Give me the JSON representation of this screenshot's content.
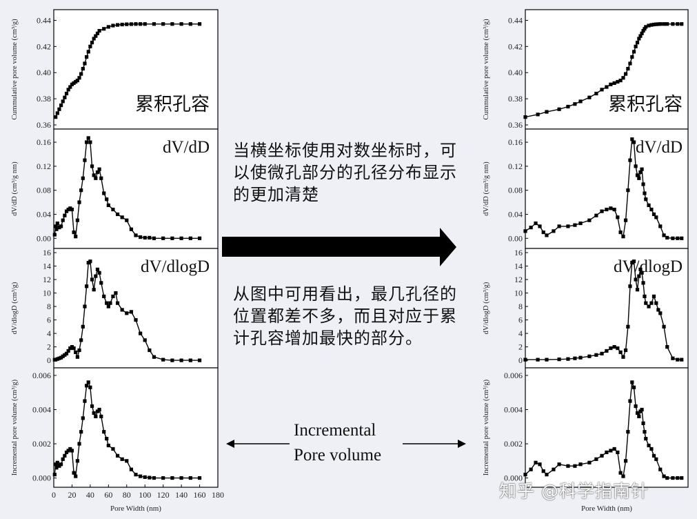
{
  "annotations": {
    "top": "当横坐标使用对数坐标时，可以使微孔部分的孔径分布显示的更加清楚",
    "middle": "从图中可用看出，最几孔径的位置都差不多，而且对应于累计孔容增加最快的部分。",
    "incremental_line1": "Incremental",
    "incremental_line2": "Pore volume",
    "watermark": "知乎 @科学指南针"
  },
  "chart_data": [
    {
      "id": "left",
      "type": "line",
      "x_scale": "linear",
      "xlabel": "Pore Width (nm)",
      "xlim": [
        0,
        180
      ],
      "xticks": [
        "0",
        "20",
        "40",
        "60",
        "80",
        "100",
        "120",
        "140",
        "160",
        "180"
      ],
      "panels": [
        {
          "label": "累积孔容",
          "ylabel": "Cummulative pore volume (cm³/g)",
          "ylim": [
            0.36,
            0.445
          ],
          "yticks": [
            "0.36",
            "0.38",
            "0.40",
            "0.42",
            "0.44"
          ],
          "x": [
            2,
            4,
            6,
            8,
            10,
            12,
            14,
            16,
            18,
            20,
            22,
            24,
            26,
            28,
            30,
            32,
            34,
            36,
            38,
            40,
            42,
            44,
            46,
            48,
            50,
            55,
            60,
            65,
            70,
            75,
            80,
            85,
            90,
            95,
            100,
            110,
            120,
            130,
            140,
            150,
            160
          ],
          "y": [
            0.366,
            0.369,
            0.372,
            0.375,
            0.378,
            0.381,
            0.384,
            0.387,
            0.389,
            0.391,
            0.392,
            0.393,
            0.394,
            0.396,
            0.399,
            0.403,
            0.407,
            0.412,
            0.416,
            0.42,
            0.423,
            0.426,
            0.428,
            0.43,
            0.432,
            0.4335,
            0.435,
            0.436,
            0.4365,
            0.4368,
            0.437,
            0.4371,
            0.4372,
            0.4372,
            0.4372,
            0.4372,
            0.4372,
            0.4372,
            0.4372,
            0.4372,
            0.4372
          ]
        },
        {
          "label": "dV/dD",
          "ylabel": "dV/dD (cm³/g nm)",
          "ylim": [
            -0.01,
            0.175
          ],
          "yticks": [
            "0.00",
            "0.04",
            "0.08",
            "0.12",
            "0.16"
          ],
          "x": [
            1,
            2,
            3,
            4,
            6,
            8,
            10,
            12,
            14,
            16,
            18,
            20,
            22,
            24,
            26,
            28,
            30,
            32,
            34,
            36,
            38,
            40,
            42,
            44,
            46,
            48,
            50,
            52,
            55,
            58,
            60,
            65,
            70,
            75,
            80,
            85,
            90,
            95,
            100,
            105,
            110,
            120,
            130,
            140,
            150,
            160
          ],
          "y": [
            0.006,
            0.02,
            0.015,
            0.025,
            0.018,
            0.02,
            0.03,
            0.038,
            0.045,
            0.048,
            0.05,
            0.048,
            0.01,
            0.003,
            0.03,
            0.06,
            0.08,
            0.1,
            0.13,
            0.16,
            0.167,
            0.16,
            0.12,
            0.105,
            0.1,
            0.11,
            0.115,
            0.1,
            0.075,
            0.065,
            0.055,
            0.048,
            0.04,
            0.035,
            0.03,
            0.015,
            0.005,
            0.002,
            0.001,
            0.001,
            0.0,
            0.0,
            0.0,
            0.0,
            0.0,
            0.0
          ]
        },
        {
          "label": "dV/dlogD",
          "ylabel": "dV/dlogD (cm³/g)",
          "ylim": [
            -0.5,
            16
          ],
          "yticks": [
            "0",
            "2",
            "4",
            "6",
            "8",
            "10",
            "12",
            "14",
            "16"
          ],
          "x": [
            1,
            2,
            4,
            6,
            8,
            10,
            12,
            14,
            16,
            18,
            20,
            22,
            24,
            26,
            28,
            30,
            32,
            34,
            36,
            38,
            40,
            42,
            44,
            46,
            48,
            50,
            52,
            55,
            58,
            60,
            62,
            65,
            68,
            70,
            75,
            80,
            85,
            90,
            95,
            100,
            105,
            110,
            120,
            130,
            140,
            150,
            160
          ],
          "y": [
            0.1,
            0.1,
            0.2,
            0.3,
            0.4,
            0.6,
            0.8,
            1.0,
            1.4,
            1.8,
            2.0,
            1.8,
            1.2,
            0.5,
            1.5,
            3.0,
            5.0,
            8.0,
            11.0,
            14.5,
            14.7,
            12.0,
            10.5,
            12.5,
            13.5,
            13.0,
            11.5,
            9.5,
            8.5,
            8.0,
            8.5,
            9.5,
            10.0,
            8.5,
            7.5,
            7.0,
            7.2,
            6.0,
            4.0,
            3.0,
            1.5,
            0.5,
            0.1,
            0.0,
            0.0,
            0.0,
            0.0
          ]
        },
        {
          "label": "",
          "ylabel": "Incremental pore volume (cm³/g)",
          "ylim": [
            -0.0003,
            0.0062
          ],
          "yticks": [
            "0.000",
            "0.002",
            "0.004",
            "0.006"
          ],
          "x": [
            1,
            2,
            3,
            4,
            6,
            8,
            10,
            12,
            14,
            16,
            18,
            20,
            22,
            24,
            26,
            28,
            30,
            32,
            34,
            36,
            38,
            40,
            42,
            44,
            46,
            48,
            50,
            52,
            55,
            58,
            60,
            65,
            70,
            75,
            80,
            85,
            90,
            95,
            100,
            105,
            110,
            120,
            130,
            140,
            150,
            160
          ],
          "y": [
            0.0002,
            0.0008,
            0.0006,
            0.0009,
            0.0007,
            0.0008,
            0.0011,
            0.0013,
            0.0015,
            0.0016,
            0.0017,
            0.0016,
            0.0003,
            0.0001,
            0.001,
            0.002,
            0.0027,
            0.0035,
            0.0045,
            0.0054,
            0.0056,
            0.0053,
            0.0042,
            0.0038,
            0.0036,
            0.0039,
            0.004,
            0.0036,
            0.0027,
            0.0023,
            0.0019,
            0.0017,
            0.0013,
            0.0011,
            0.001,
            0.0005,
            0.0002,
            0.0001,
            5e-05,
            2e-05,
            0.0,
            0.0,
            0.0,
            0.0,
            0.0,
            0.0
          ]
        }
      ]
    },
    {
      "id": "right",
      "type": "line",
      "x_scale": "log",
      "xlabel": "Pore Width (nm)",
      "panels": [
        {
          "label": "累积孔容",
          "ylabel": "Cummulative pore volume (cm³/g)",
          "ylim": [
            0.36,
            0.445
          ],
          "yticks": [
            "0.36",
            "0.38",
            "0.40",
            "0.42",
            "0.44"
          ],
          "x": [
            1,
            1.5,
            2,
            3,
            4,
            5,
            6,
            8,
            10,
            12,
            14,
            16,
            18,
            20,
            22,
            24,
            26,
            28,
            30,
            32,
            34,
            36,
            38,
            40,
            42,
            44,
            46,
            48,
            50,
            55,
            60,
            65,
            70,
            75,
            80,
            90,
            100,
            120,
            140,
            160
          ],
          "y": [
            0.366,
            0.368,
            0.37,
            0.372,
            0.374,
            0.376,
            0.378,
            0.381,
            0.384,
            0.387,
            0.389,
            0.391,
            0.392,
            0.393,
            0.394,
            0.396,
            0.399,
            0.403,
            0.407,
            0.412,
            0.416,
            0.42,
            0.423,
            0.426,
            0.428,
            0.43,
            0.432,
            0.4335,
            0.435,
            0.436,
            0.4365,
            0.4368,
            0.437,
            0.4371,
            0.4372,
            0.4372,
            0.4372,
            0.4372,
            0.4372,
            0.4372
          ]
        },
        {
          "label": "dV/dD",
          "ylabel": "dV/dD (cm³/g nm)",
          "ylim": [
            -0.01,
            0.175
          ],
          "yticks": [
            "0.00",
            "0.04",
            "0.08",
            "0.12",
            "0.16"
          ],
          "x": [
            1,
            1.2,
            1.4,
            1.6,
            1.8,
            2,
            2.5,
            3,
            4,
            5,
            6,
            8,
            10,
            12,
            14,
            16,
            18,
            20,
            22,
            24,
            26,
            28,
            30,
            32,
            34,
            36,
            38,
            40,
            42,
            44,
            46,
            48,
            50,
            55,
            60,
            65,
            70,
            80,
            90,
            100,
            120,
            140,
            160
          ],
          "y": [
            0.012,
            0.018,
            0.025,
            0.02,
            0.01,
            0.005,
            0.012,
            0.02,
            0.02,
            0.022,
            0.025,
            0.03,
            0.038,
            0.045,
            0.048,
            0.05,
            0.048,
            0.035,
            0.01,
            0.003,
            0.03,
            0.08,
            0.13,
            0.165,
            0.16,
            0.12,
            0.105,
            0.1,
            0.11,
            0.115,
            0.09,
            0.075,
            0.065,
            0.055,
            0.048,
            0.04,
            0.035,
            0.02,
            0.005,
            0.001,
            0.0,
            0.0,
            0.0
          ]
        },
        {
          "label": "dV/dlogD",
          "ylabel": "dV/dlogD (cm³/g)",
          "ylim": [
            -0.5,
            16
          ],
          "yticks": [
            "0",
            "2",
            "4",
            "6",
            "8",
            "10",
            "12",
            "14",
            "16"
          ],
          "x": [
            1,
            1.5,
            2,
            3,
            4,
            5,
            6,
            8,
            10,
            12,
            14,
            16,
            18,
            20,
            22,
            24,
            26,
            28,
            30,
            32,
            34,
            36,
            38,
            40,
            42,
            44,
            46,
            48,
            50,
            55,
            60,
            65,
            70,
            75,
            80,
            90,
            100,
            120,
            140,
            160
          ],
          "y": [
            0.1,
            0.1,
            0.1,
            0.15,
            0.2,
            0.3,
            0.4,
            0.6,
            0.8,
            1.0,
            1.4,
            1.8,
            2.0,
            1.8,
            1.2,
            0.5,
            1.5,
            5.0,
            11.0,
            14.5,
            14.7,
            12.0,
            10.5,
            12.5,
            13.5,
            13.0,
            11.5,
            9.5,
            8.5,
            8.0,
            8.5,
            9.5,
            8.5,
            7.5,
            7.0,
            5.0,
            2.0,
            0.3,
            0.1,
            0.1
          ]
        },
        {
          "label": "",
          "ylabel": "Incremental pore volume (cm³/g)",
          "ylim": [
            -0.0003,
            0.0062
          ],
          "yticks": [
            "0.000",
            "0.002",
            "0.004",
            "0.006"
          ],
          "x": [
            1,
            1.2,
            1.4,
            1.6,
            1.8,
            2,
            2.5,
            3,
            4,
            5,
            6,
            8,
            10,
            12,
            14,
            16,
            18,
            20,
            22,
            24,
            26,
            28,
            30,
            32,
            34,
            36,
            38,
            40,
            42,
            44,
            46,
            48,
            50,
            55,
            60,
            65,
            70,
            80,
            90,
            100,
            120,
            140,
            160
          ],
          "y": [
            0.0002,
            0.0005,
            0.0009,
            0.0008,
            0.0004,
            0.0002,
            0.0005,
            0.0008,
            0.0007,
            0.0007,
            0.0008,
            0.0009,
            0.0011,
            0.0013,
            0.0015,
            0.0016,
            0.0017,
            0.0015,
            0.0003,
            0.0001,
            0.001,
            0.0027,
            0.0045,
            0.0056,
            0.0053,
            0.0042,
            0.0038,
            0.0036,
            0.0039,
            0.004,
            0.0032,
            0.0027,
            0.0023,
            0.0019,
            0.0017,
            0.0013,
            0.0011,
            0.0005,
            0.0001,
            0.0,
            0.0,
            0.0,
            0.0
          ]
        }
      ]
    }
  ]
}
